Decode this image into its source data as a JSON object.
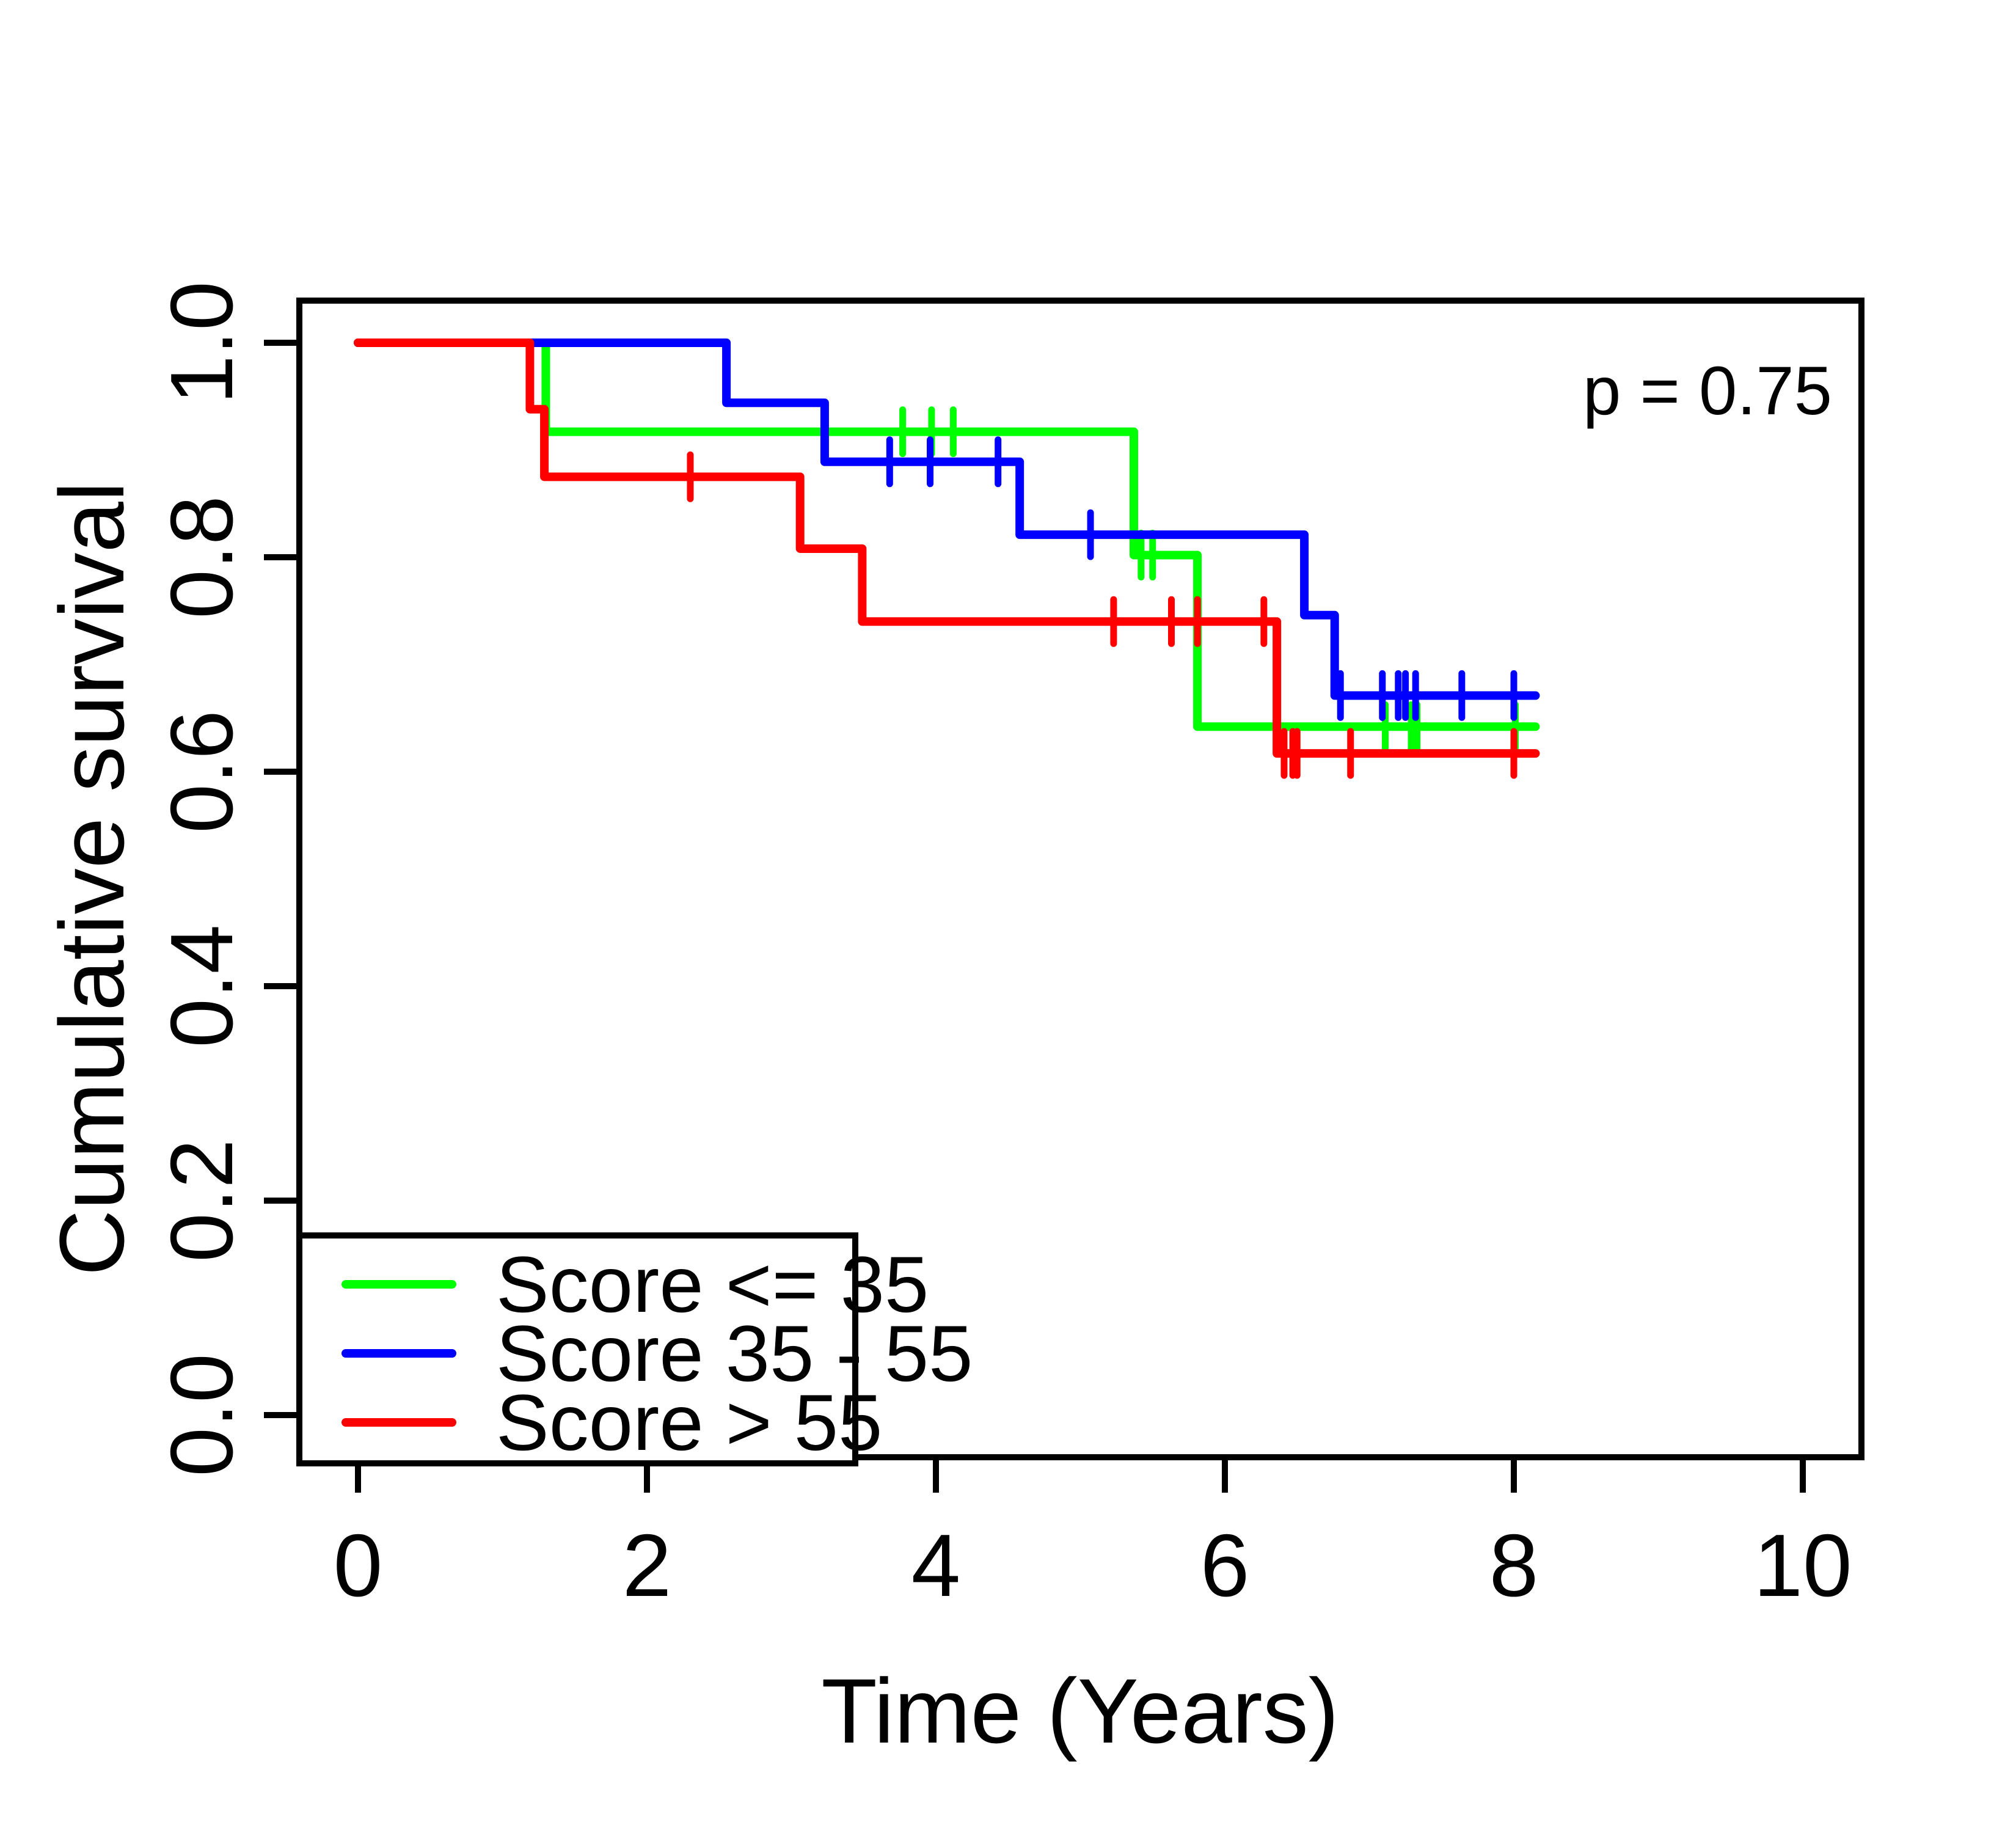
{
  "chart_data": {
    "type": "line",
    "variant": "kaplan-meier-survival-step",
    "title": "",
    "xlabel": "Time (Years)",
    "ylabel": "Cumulative survival",
    "annotation_label": "p = 0.75",
    "p_value": 0.75,
    "xlim": [
      0,
      10
    ],
    "ylim": [
      0.0,
      1.0
    ],
    "x_tick_labels": [
      "0",
      "2",
      "4",
      "6",
      "8",
      "10"
    ],
    "x_tick_values": [
      0,
      2,
      4,
      6,
      8,
      10
    ],
    "y_tick_labels": [
      "0.0",
      "0.2",
      "0.4",
      "0.6",
      "0.8",
      "1.0"
    ],
    "y_tick_values": [
      0.0,
      0.2,
      0.4,
      0.6,
      0.8,
      1.0
    ],
    "grid": false,
    "legend_position": "bottom-left",
    "end_time": 8.15,
    "axis_color": "#000000",
    "series": [
      {
        "name": "Score <= 35",
        "color": "#00FF00",
        "km_steps": [
          [
            0,
            1.0
          ],
          [
            1.3,
            0.917
          ],
          [
            5.37,
            0.802
          ],
          [
            5.81,
            0.642
          ]
        ],
        "censor_marks": [
          [
            3.77,
            0.917
          ],
          [
            3.97,
            0.917
          ],
          [
            4.12,
            0.917
          ],
          [
            5.42,
            0.802
          ],
          [
            5.5,
            0.802
          ],
          [
            7.11,
            0.642
          ],
          [
            7.29,
            0.642
          ],
          [
            7.33,
            0.642
          ],
          [
            8.01,
            0.642
          ]
        ]
      },
      {
        "name": "Score 35 - 55",
        "color": "#0000FF",
        "km_steps": [
          [
            0,
            1.0
          ],
          [
            2.55,
            0.944
          ],
          [
            3.23,
            0.889
          ],
          [
            4.58,
            0.821
          ],
          [
            6.55,
            0.746
          ],
          [
            6.76,
            0.671
          ]
        ],
        "censor_marks": [
          [
            3.68,
            0.889
          ],
          [
            3.96,
            0.889
          ],
          [
            4.43,
            0.889
          ],
          [
            5.07,
            0.821
          ],
          [
            6.8,
            0.671
          ],
          [
            7.09,
            0.671
          ],
          [
            7.2,
            0.671
          ],
          [
            7.25,
            0.671
          ],
          [
            7.32,
            0.671
          ],
          [
            7.64,
            0.671
          ],
          [
            8.0,
            0.671
          ]
        ]
      },
      {
        "name": "Score > 55",
        "color": "#FF0000",
        "km_steps": [
          [
            0,
            1.0
          ],
          [
            1.19,
            0.938
          ],
          [
            1.29,
            0.875
          ],
          [
            3.06,
            0.808
          ],
          [
            3.49,
            0.74
          ],
          [
            6.36,
            0.617
          ]
        ],
        "censor_marks": [
          [
            2.3,
            0.875
          ],
          [
            5.23,
            0.74
          ],
          [
            5.63,
            0.74
          ],
          [
            5.81,
            0.74
          ],
          [
            6.27,
            0.74
          ],
          [
            6.41,
            0.617
          ],
          [
            6.47,
            0.617
          ],
          [
            6.5,
            0.617
          ],
          [
            6.87,
            0.617
          ],
          [
            8.0,
            0.617
          ]
        ]
      }
    ]
  }
}
